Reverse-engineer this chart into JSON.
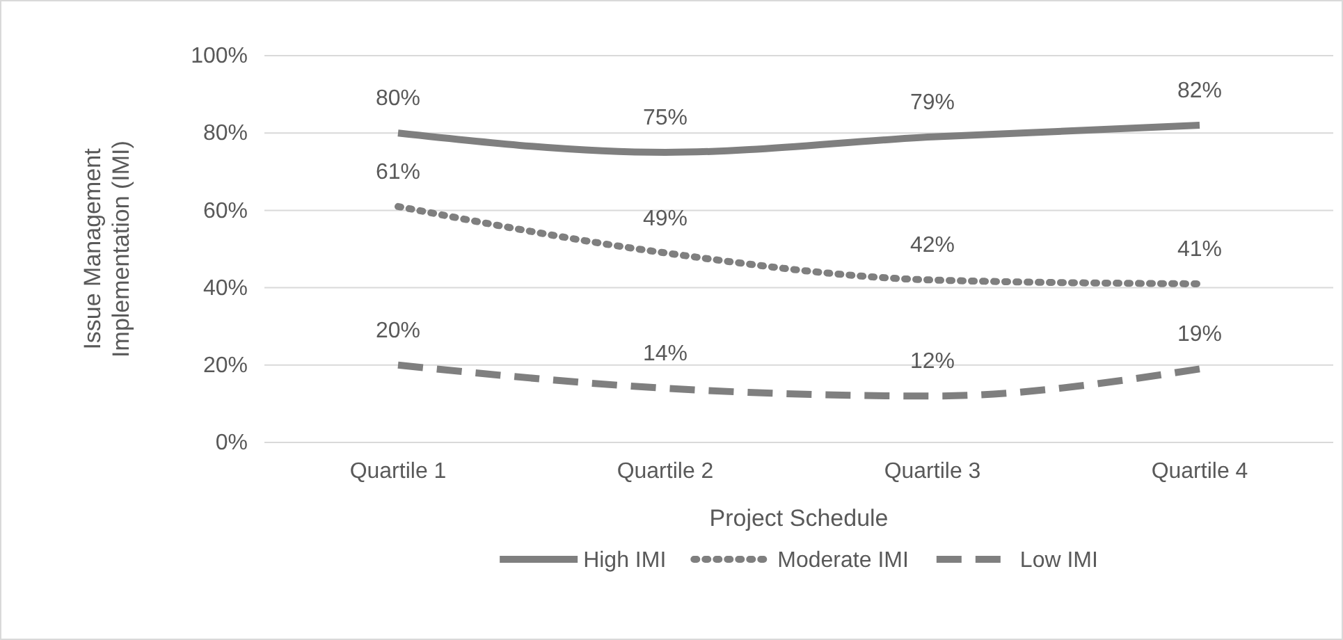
{
  "chart_data": {
    "type": "line",
    "xlabel": "Project Schedule",
    "ylabel": "Issue Management Implementation (IMI)",
    "categories": [
      "Quartile 1",
      "Quartile 2",
      "Quartile 3",
      "Quartile 4"
    ],
    "series": [
      {
        "name": "High IMI",
        "color": "#7f7f7f",
        "line_style": "solid",
        "values": [
          80,
          75,
          79,
          82
        ],
        "value_labels": [
          "80%",
          "75%",
          "79%",
          "82%"
        ]
      },
      {
        "name": "Moderate IMI",
        "color": "#7f7f7f",
        "line_style": "dotted",
        "values": [
          61,
          49,
          42,
          41
        ],
        "value_labels": [
          "61%",
          "49%",
          "42%",
          "41%"
        ]
      },
      {
        "name": "Low IMI",
        "color": "#7f7f7f",
        "line_style": "dashed",
        "values": [
          20,
          14,
          12,
          19
        ],
        "value_labels": [
          "20%",
          "14%",
          "12%",
          "19%"
        ]
      }
    ],
    "ylim": [
      0,
      100
    ],
    "yticks": [
      {
        "value": 0,
        "label": "0%"
      },
      {
        "value": 20,
        "label": "20%"
      },
      {
        "value": 40,
        "label": "40%"
      },
      {
        "value": 60,
        "label": "60%"
      },
      {
        "value": 80,
        "label": "80%"
      },
      {
        "value": 100,
        "label": "100%"
      }
    ],
    "grid": "y",
    "legend": "bottom",
    "marker": "none"
  }
}
